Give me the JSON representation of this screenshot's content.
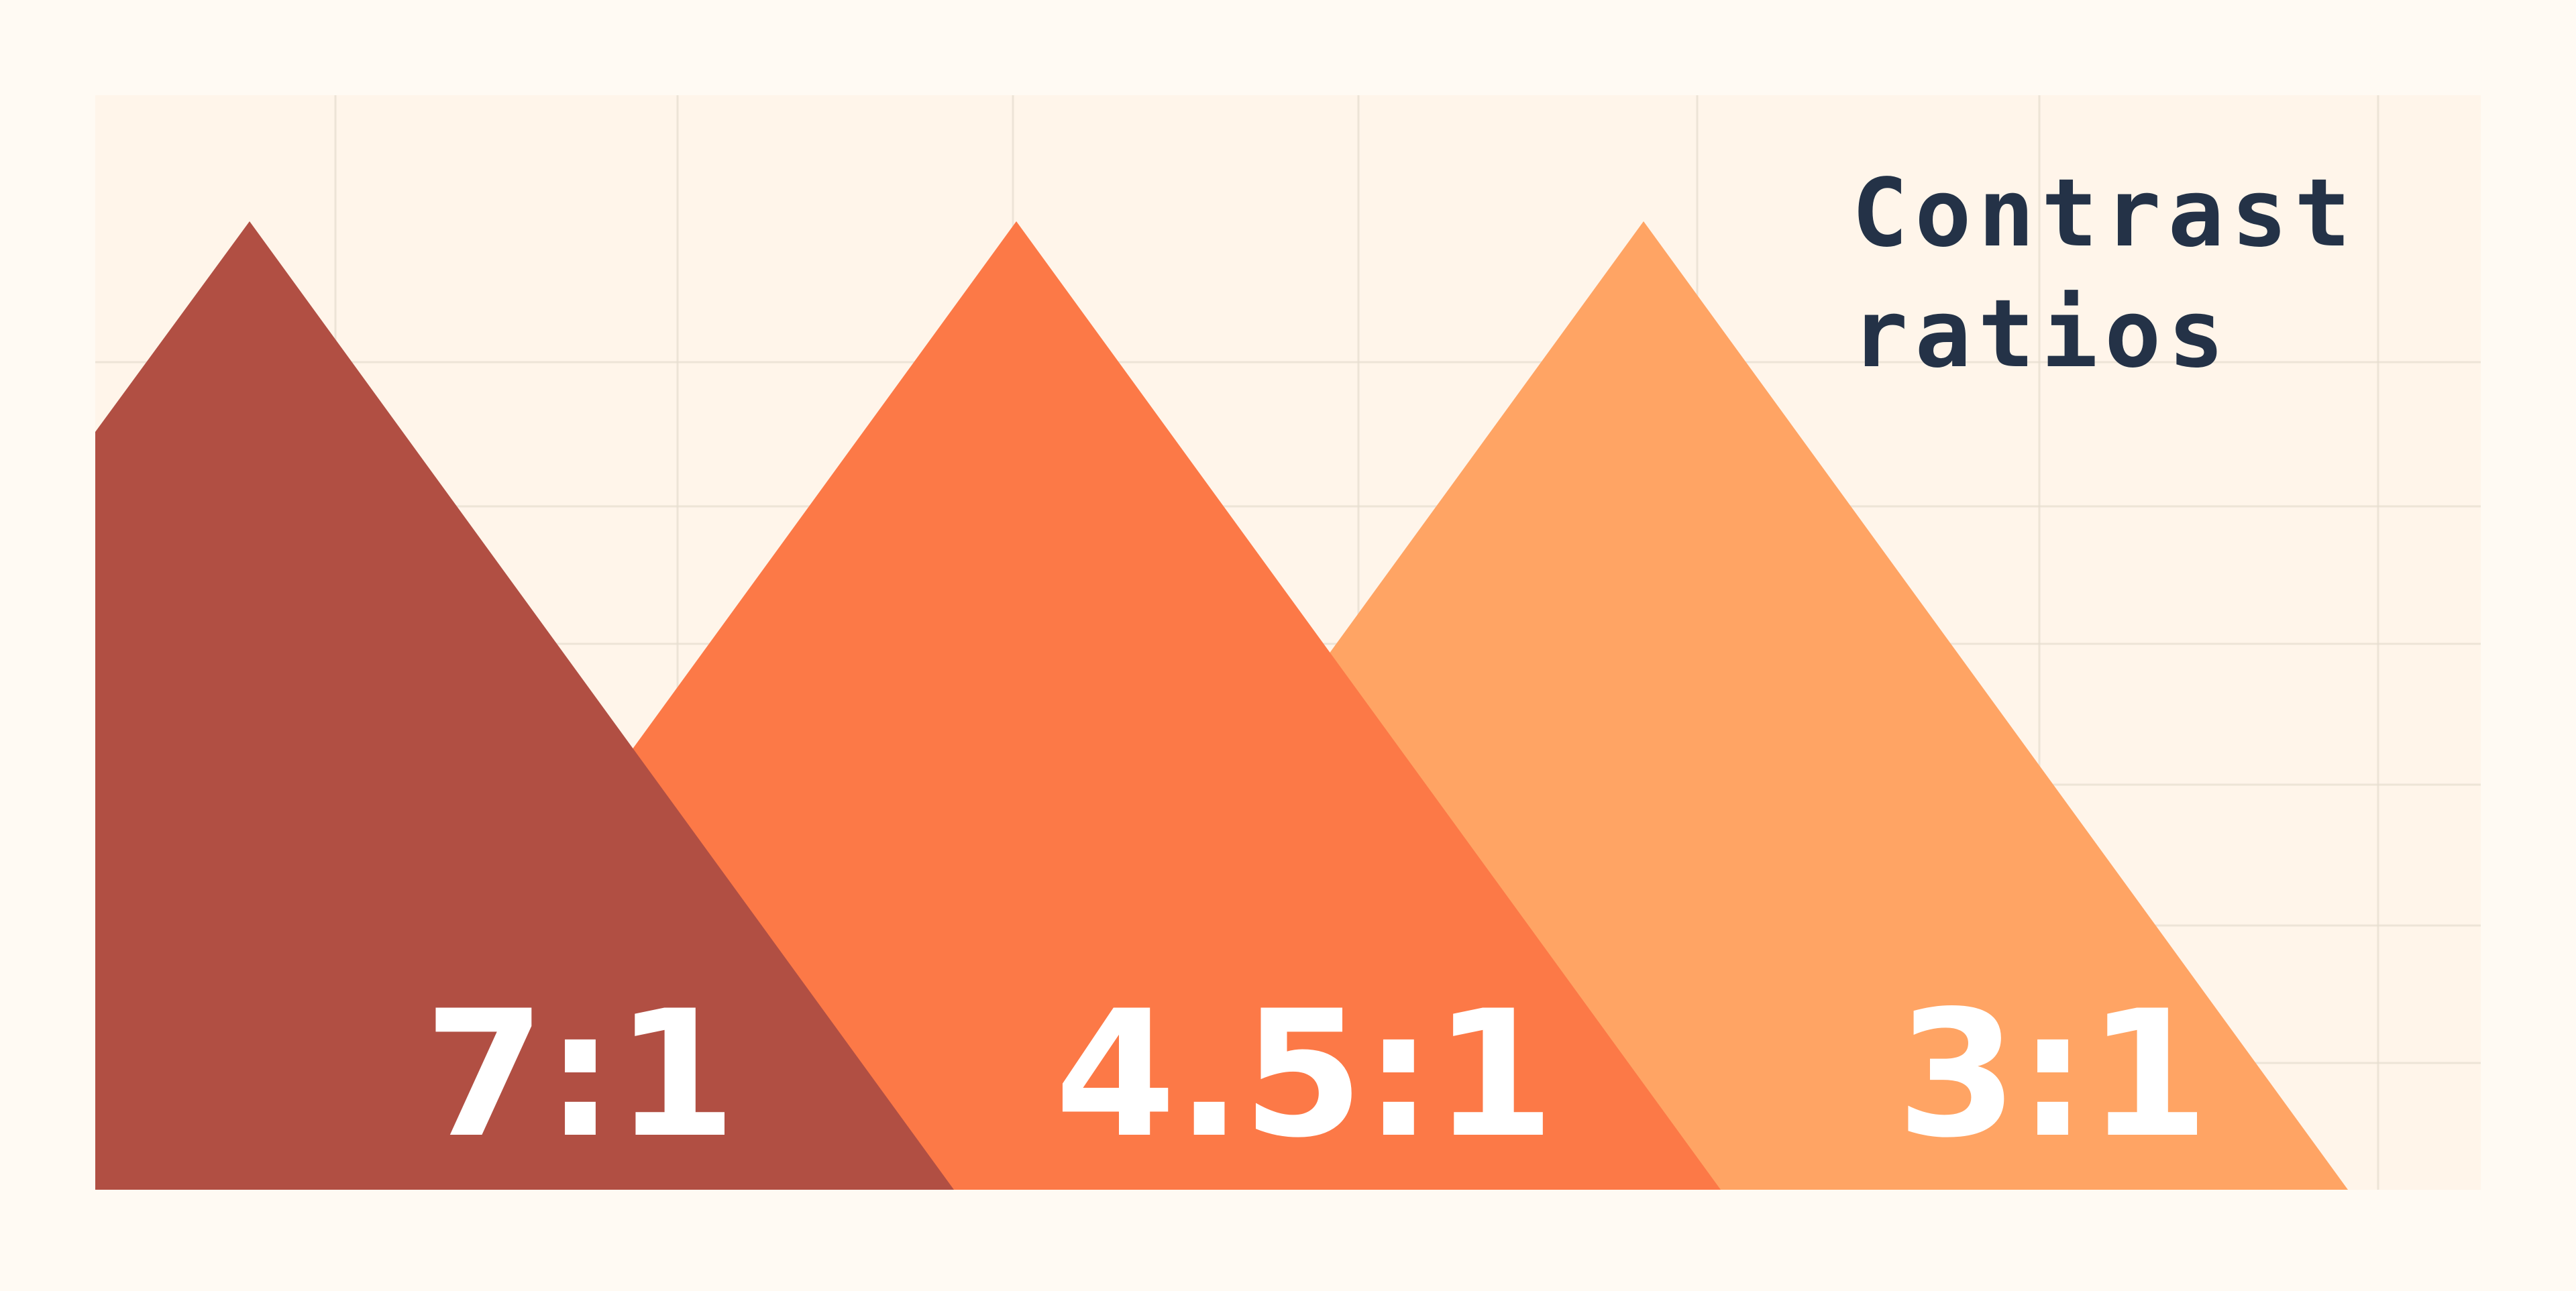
{
  "title": {
    "line1": "Contrast",
    "line2": "ratios"
  },
  "peaks": [
    {
      "label": "7:1",
      "color": "#b14f43"
    },
    {
      "label": "4.5:1",
      "color": "#fc7947"
    },
    {
      "label": "3:1",
      "color": "#ffa464"
    }
  ],
  "colors": {
    "page_background": "#fffaf3",
    "panel_background": "#fff5ea",
    "grid": "#e6ddd0",
    "title_text": "#243247",
    "label_text": "#ffffff"
  }
}
